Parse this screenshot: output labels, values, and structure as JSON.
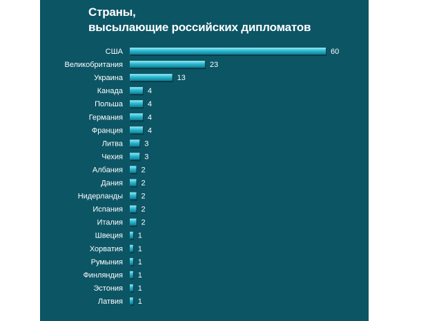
{
  "chart_data": {
    "type": "bar",
    "orientation": "horizontal",
    "title_line1": "Страны,",
    "title_line2": "высылающие российских дипломатов",
    "categories": [
      "США",
      "Великобритания",
      "Украина",
      "Канада",
      "Польша",
      "Германия",
      "Франция",
      "Литва",
      "Чехия",
      "Албания",
      "Дания",
      "Нидерланды",
      "Испания",
      "Италия",
      "Швеция",
      "Хорватия",
      "Румыния",
      "Финляндия",
      "Эстония",
      "Латвия"
    ],
    "values": [
      60,
      23,
      13,
      4,
      4,
      4,
      4,
      3,
      3,
      2,
      2,
      2,
      2,
      2,
      1,
      1,
      1,
      1,
      1,
      1
    ],
    "xlabel": "",
    "ylabel": "",
    "xlim": [
      0,
      60
    ],
    "grid": false,
    "legend": "none",
    "colors": {
      "background": "#0c5565",
      "bar": "#27b6cf",
      "bar_highlight": "#8fe6f3",
      "text": "#ffffff"
    }
  }
}
